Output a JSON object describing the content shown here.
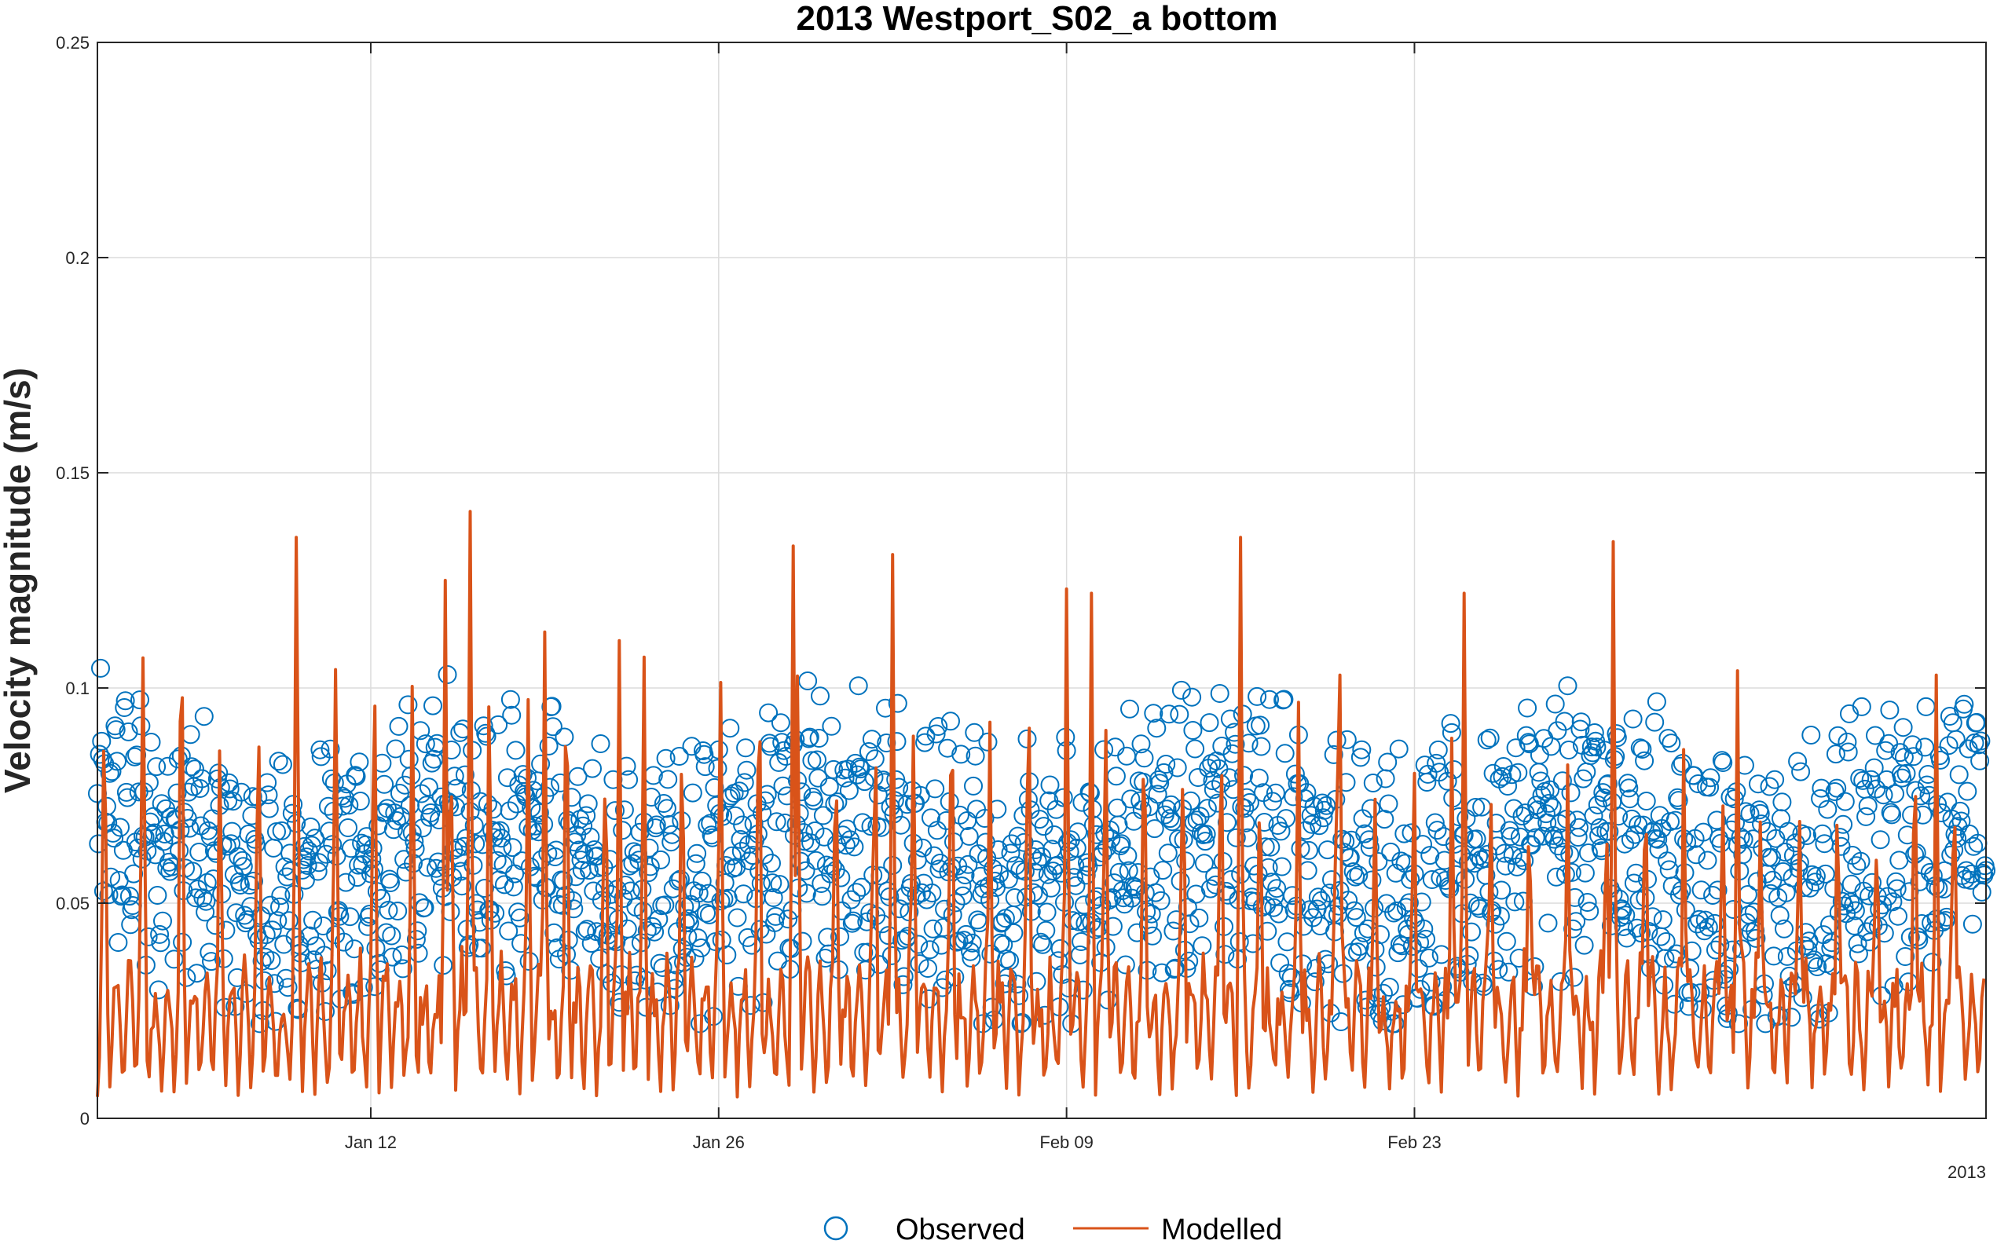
{
  "chart_data": {
    "type": "line",
    "title": "2013 Westport_S02_a bottom",
    "xlabel": "",
    "ylabel": "Velocity magnitude (m/s)",
    "ylim": [
      0,
      0.25
    ],
    "xlim": [
      "2013-01-01",
      "2013-03-18"
    ],
    "x_secondary_label": "2013",
    "y_ticks": [
      "0",
      "0.05",
      "0.1",
      "0.15",
      "0.2",
      "0.25"
    ],
    "y_tick_values": [
      0,
      0.05,
      0.1,
      0.15,
      0.2,
      0.25
    ],
    "x_ticks": [
      "Jan 12",
      "Jan 26",
      "Feb 09",
      "Feb 23"
    ],
    "x_tick_dates": [
      "2013-01-12",
      "2013-01-26",
      "2013-02-09",
      "2013-02-23"
    ],
    "grid": true,
    "legend_position": "bottom",
    "series": [
      {
        "name": "Observed",
        "style": "markers-open-circle",
        "color": "#0072BD",
        "typical_range": [
          0.025,
          0.105
        ],
        "mean": 0.06
      },
      {
        "name": "Modelled",
        "style": "line",
        "color": "#D95319",
        "baseline_range": [
          0.005,
          0.04
        ],
        "peaks": [
          {
            "x": "2013-01-09",
            "y": 0.135
          },
          {
            "x": "2013-01-15",
            "y": 0.125
          },
          {
            "x": "2013-01-16",
            "y": 0.141
          },
          {
            "x": "2013-01-19",
            "y": 0.113
          },
          {
            "x": "2013-01-22",
            "y": 0.111
          },
          {
            "x": "2013-01-29",
            "y": 0.133
          },
          {
            "x": "2013-02-02",
            "y": 0.131
          },
          {
            "x": "2013-02-09",
            "y": 0.123
          },
          {
            "x": "2013-02-10",
            "y": 0.122
          },
          {
            "x": "2013-02-16",
            "y": 0.135
          },
          {
            "x": "2013-02-20",
            "y": 0.103
          },
          {
            "x": "2013-02-25",
            "y": 0.122
          },
          {
            "x": "2013-03-03",
            "y": 0.134
          },
          {
            "x": "2013-03-08",
            "y": 0.104
          },
          {
            "x": "2013-03-16",
            "y": 0.103
          }
        ]
      }
    ]
  }
}
